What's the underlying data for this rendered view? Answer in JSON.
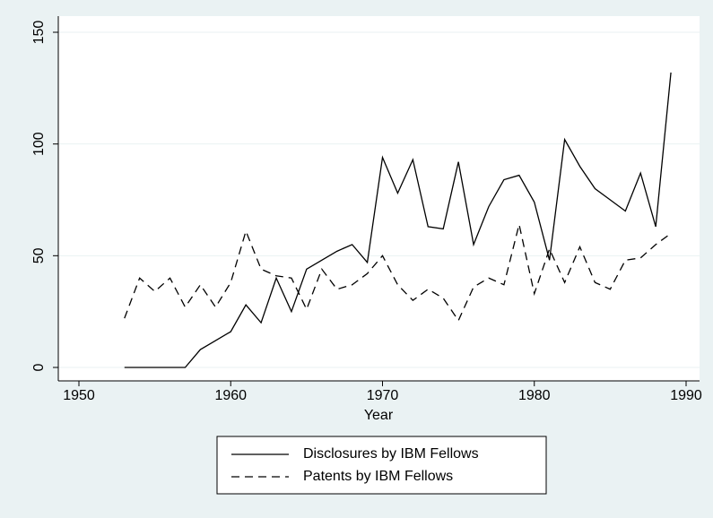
{
  "chart_data": {
    "type": "line",
    "x": [
      1953,
      1954,
      1955,
      1956,
      1957,
      1958,
      1959,
      1960,
      1961,
      1962,
      1963,
      1964,
      1965,
      1966,
      1967,
      1968,
      1969,
      1970,
      1971,
      1972,
      1973,
      1974,
      1975,
      1976,
      1977,
      1978,
      1979,
      1980,
      1981,
      1982,
      1983,
      1984,
      1985,
      1986,
      1987,
      1988,
      1989
    ],
    "series": [
      {
        "name": "Disclosures by IBM Fellows",
        "color": "#000000",
        "style": "solid",
        "values": [
          0,
          0,
          0,
          0,
          0,
          8,
          12,
          16,
          28,
          20,
          40,
          25,
          44,
          48,
          52,
          55,
          47,
          94,
          78,
          93,
          63,
          62,
          92,
          55,
          72,
          84,
          86,
          74,
          48,
          102,
          90,
          80,
          75,
          70,
          87,
          63,
          132
        ]
      },
      {
        "name": "Patents by IBM Fellows",
        "color": "#000000",
        "style": "dashed",
        "values": [
          22,
          40,
          34,
          40,
          27,
          37,
          27,
          38,
          61,
          44,
          41,
          40,
          26,
          44,
          35,
          37,
          42,
          50,
          37,
          30,
          35,
          31,
          21,
          36,
          40,
          37,
          64,
          33,
          53,
          38,
          54,
          38,
          35,
          48,
          49,
          55,
          60
        ]
      }
    ],
    "xlabel": "Year",
    "xlim": [
      1950,
      1990
    ],
    "xticks": [
      1950,
      1960,
      1970,
      1980,
      1990
    ],
    "ylim": [
      0,
      150
    ],
    "yticks": [
      0,
      50,
      100,
      150
    ],
    "grid": true,
    "legend": "bottom"
  }
}
